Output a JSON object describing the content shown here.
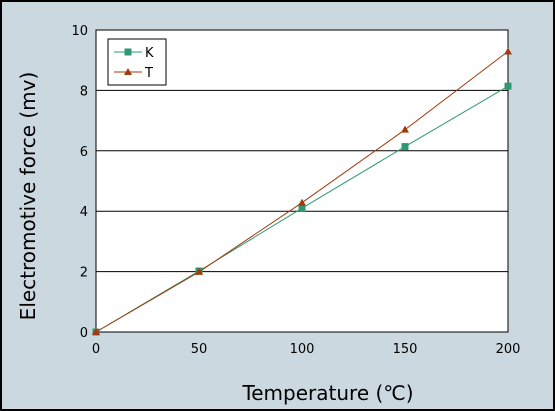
{
  "chart_data": {
    "type": "line",
    "title": "",
    "xlabel": "Temperature (℃)",
    "ylabel": "Electromotive force (mv)",
    "x": [
      0,
      50,
      100,
      150,
      200
    ],
    "xlim": [
      0,
      200
    ],
    "ylim": [
      0,
      10
    ],
    "xticks": [
      "0",
      "50",
      "100",
      "150",
      "200"
    ],
    "yticks": [
      "0",
      "2",
      "4",
      "6",
      "8",
      "10"
    ],
    "grid": "horizontal",
    "legend_position": "top-left",
    "series": [
      {
        "name": "K",
        "values": [
          0,
          2.02,
          4.1,
          6.14,
          8.14
        ],
        "color": "#2e9970",
        "marker": "square"
      },
      {
        "name": "T",
        "values": [
          0,
          1.99,
          4.28,
          6.7,
          9.29
        ],
        "color": "#a03a10",
        "marker": "triangle"
      }
    ],
    "colors": {
      "plot_bg": "#ffffff",
      "frame_bg": "#ccd8e0",
      "grid": "#000000"
    }
  }
}
